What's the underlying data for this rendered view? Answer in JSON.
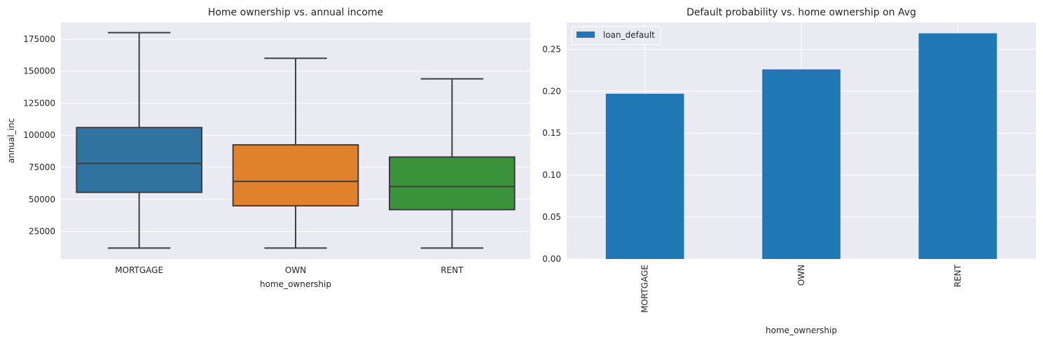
{
  "chart_data": [
    {
      "type": "box",
      "title": "Home ownership vs. annual income",
      "xlabel": "home_ownership",
      "ylabel": "annual_inc",
      "categories": [
        "MORTGAGE",
        "OWN",
        "RENT"
      ],
      "ylim": [
        3500,
        188000
      ],
      "yticks": [
        25000,
        50000,
        75000,
        100000,
        125000,
        150000,
        175000
      ],
      "yticklabels": [
        "25000",
        "50000",
        "75000",
        "100000",
        "125000",
        "150000",
        "175000"
      ],
      "grid": true,
      "boxes": [
        {
          "category": "MORTGAGE",
          "whisker_low": 12000,
          "q1": 55500,
          "median": 78000,
          "q3": 106000,
          "whisker_high": 180000,
          "color": "#3274a1"
        },
        {
          "category": "OWN",
          "whisker_low": 12000,
          "q1": 45000,
          "median": 64000,
          "q3": 92500,
          "whisker_high": 160000,
          "color": "#e1812c"
        },
        {
          "category": "RENT",
          "whisker_low": 12000,
          "q1": 42000,
          "median": 60000,
          "q3": 83000,
          "whisker_high": 144000,
          "color": "#3a923a"
        }
      ]
    },
    {
      "type": "bar",
      "title": "Default probability vs. home ownership on Avg",
      "xlabel": "home_ownership",
      "ylabel": "",
      "categories": [
        "MORTGAGE",
        "OWN",
        "RENT"
      ],
      "series": [
        {
          "name": "loan_default",
          "values": [
            0.197,
            0.226,
            0.269
          ],
          "color": "#1f77b4"
        }
      ],
      "ylim": [
        0,
        0.282
      ],
      "yticks": [
        0,
        0.05,
        0.1,
        0.15,
        0.2,
        0.25
      ],
      "yticklabels": [
        "0.00",
        "0.05",
        "0.10",
        "0.15",
        "0.20",
        "0.25"
      ],
      "grid": true,
      "legend": "top-left",
      "xtick_rotation": "vertical"
    }
  ]
}
